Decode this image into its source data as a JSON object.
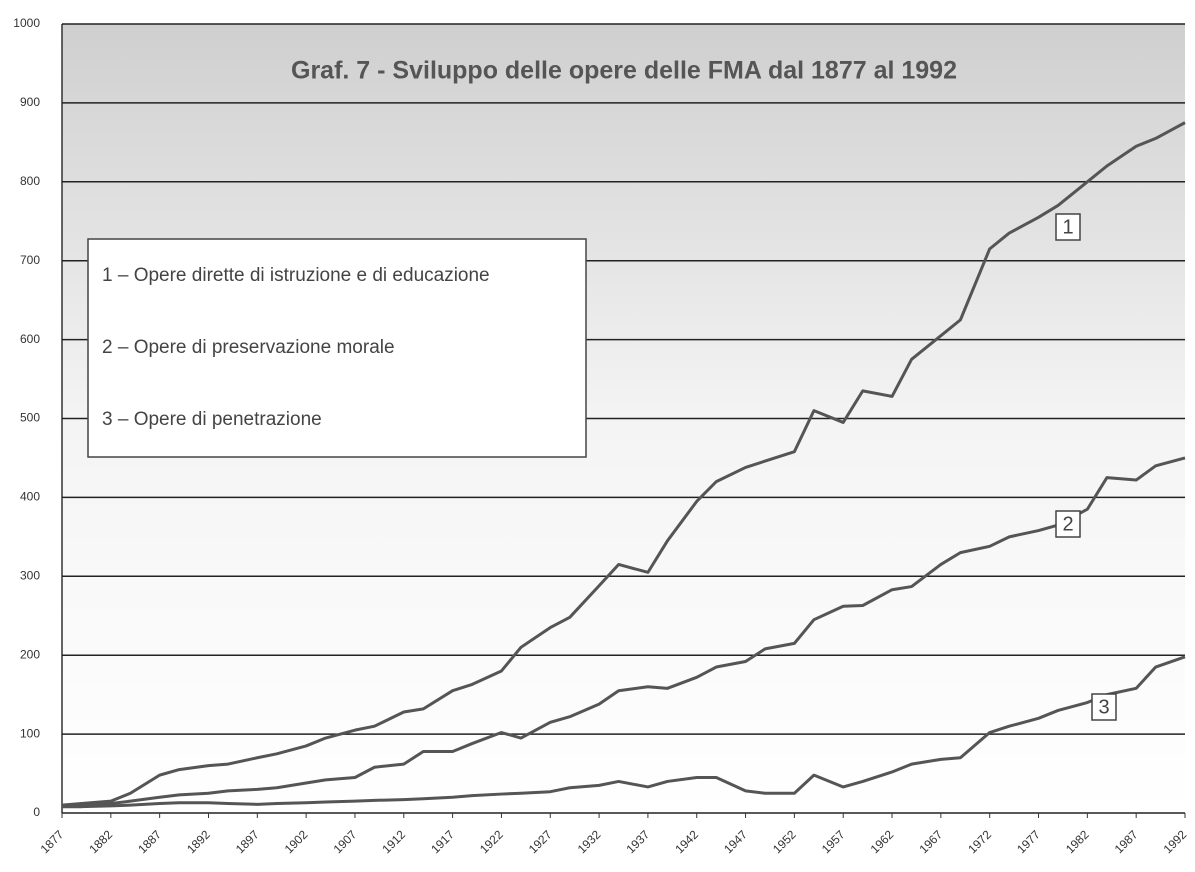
{
  "chart_data": {
    "type": "line",
    "title": "Graf. 7 - Sviluppo delle opere delle FMA dal 1877 al 1992",
    "x": [
      1877,
      1879,
      1882,
      1884,
      1887,
      1889,
      1892,
      1894,
      1897,
      1899,
      1902,
      1904,
      1907,
      1909,
      1912,
      1914,
      1917,
      1919,
      1922,
      1924,
      1927,
      1929,
      1932,
      1934,
      1937,
      1939,
      1942,
      1944,
      1947,
      1949,
      1952,
      1954,
      1957,
      1959,
      1962,
      1964,
      1967,
      1969,
      1972,
      1974,
      1977,
      1979,
      1982,
      1984,
      1987,
      1989,
      1992
    ],
    "series": [
      {
        "name": "1 – Opere dirette di istruzione e di educazione",
        "color": "#555555",
        "values": [
          10,
          12,
          15,
          25,
          48,
          55,
          60,
          62,
          70,
          75,
          85,
          95,
          105,
          110,
          128,
          132,
          155,
          163,
          180,
          210,
          235,
          248,
          288,
          315,
          305,
          345,
          395,
          420,
          438,
          446,
          458,
          510,
          495,
          535,
          528,
          575,
          605,
          625,
          715,
          735,
          755,
          770,
          800,
          820,
          845,
          855,
          875
        ]
      },
      {
        "name": "2 – Opere di preservazione morale",
        "color": "#555555",
        "values": [
          8,
          10,
          12,
          15,
          20,
          23,
          25,
          28,
          30,
          32,
          38,
          42,
          45,
          58,
          62,
          78,
          78,
          88,
          102,
          95,
          115,
          122,
          138,
          155,
          160,
          158,
          172,
          185,
          192,
          208,
          215,
          245,
          262,
          263,
          283,
          287,
          315,
          330,
          338,
          350,
          358,
          365,
          385,
          425,
          422,
          440,
          450
        ]
      },
      {
        "name": "3 – Opere di penetrazione",
        "color": "#555555",
        "values": [
          8,
          8,
          9,
          10,
          12,
          13,
          13,
          12,
          11,
          12,
          13,
          14,
          15,
          16,
          17,
          18,
          20,
          22,
          24,
          25,
          27,
          32,
          35,
          40,
          33,
          40,
          45,
          45,
          28,
          25,
          25,
          48,
          33,
          40,
          52,
          62,
          68,
          70,
          102,
          110,
          120,
          130,
          140,
          150,
          158,
          185,
          198
        ]
      }
    ],
    "annotations": [
      "1",
      "2",
      "3"
    ],
    "xlim": [
      1877,
      1992
    ],
    "xticks": [
      1877,
      1882,
      1887,
      1892,
      1897,
      1902,
      1907,
      1912,
      1917,
      1922,
      1927,
      1932,
      1937,
      1942,
      1947,
      1952,
      1957,
      1962,
      1967,
      1972,
      1977,
      1982,
      1987,
      1992
    ],
    "ylim": [
      0,
      1000
    ],
    "yticks": [
      0,
      100,
      200,
      300,
      400,
      500,
      600,
      700,
      800,
      900,
      1000
    ],
    "grid": true
  }
}
